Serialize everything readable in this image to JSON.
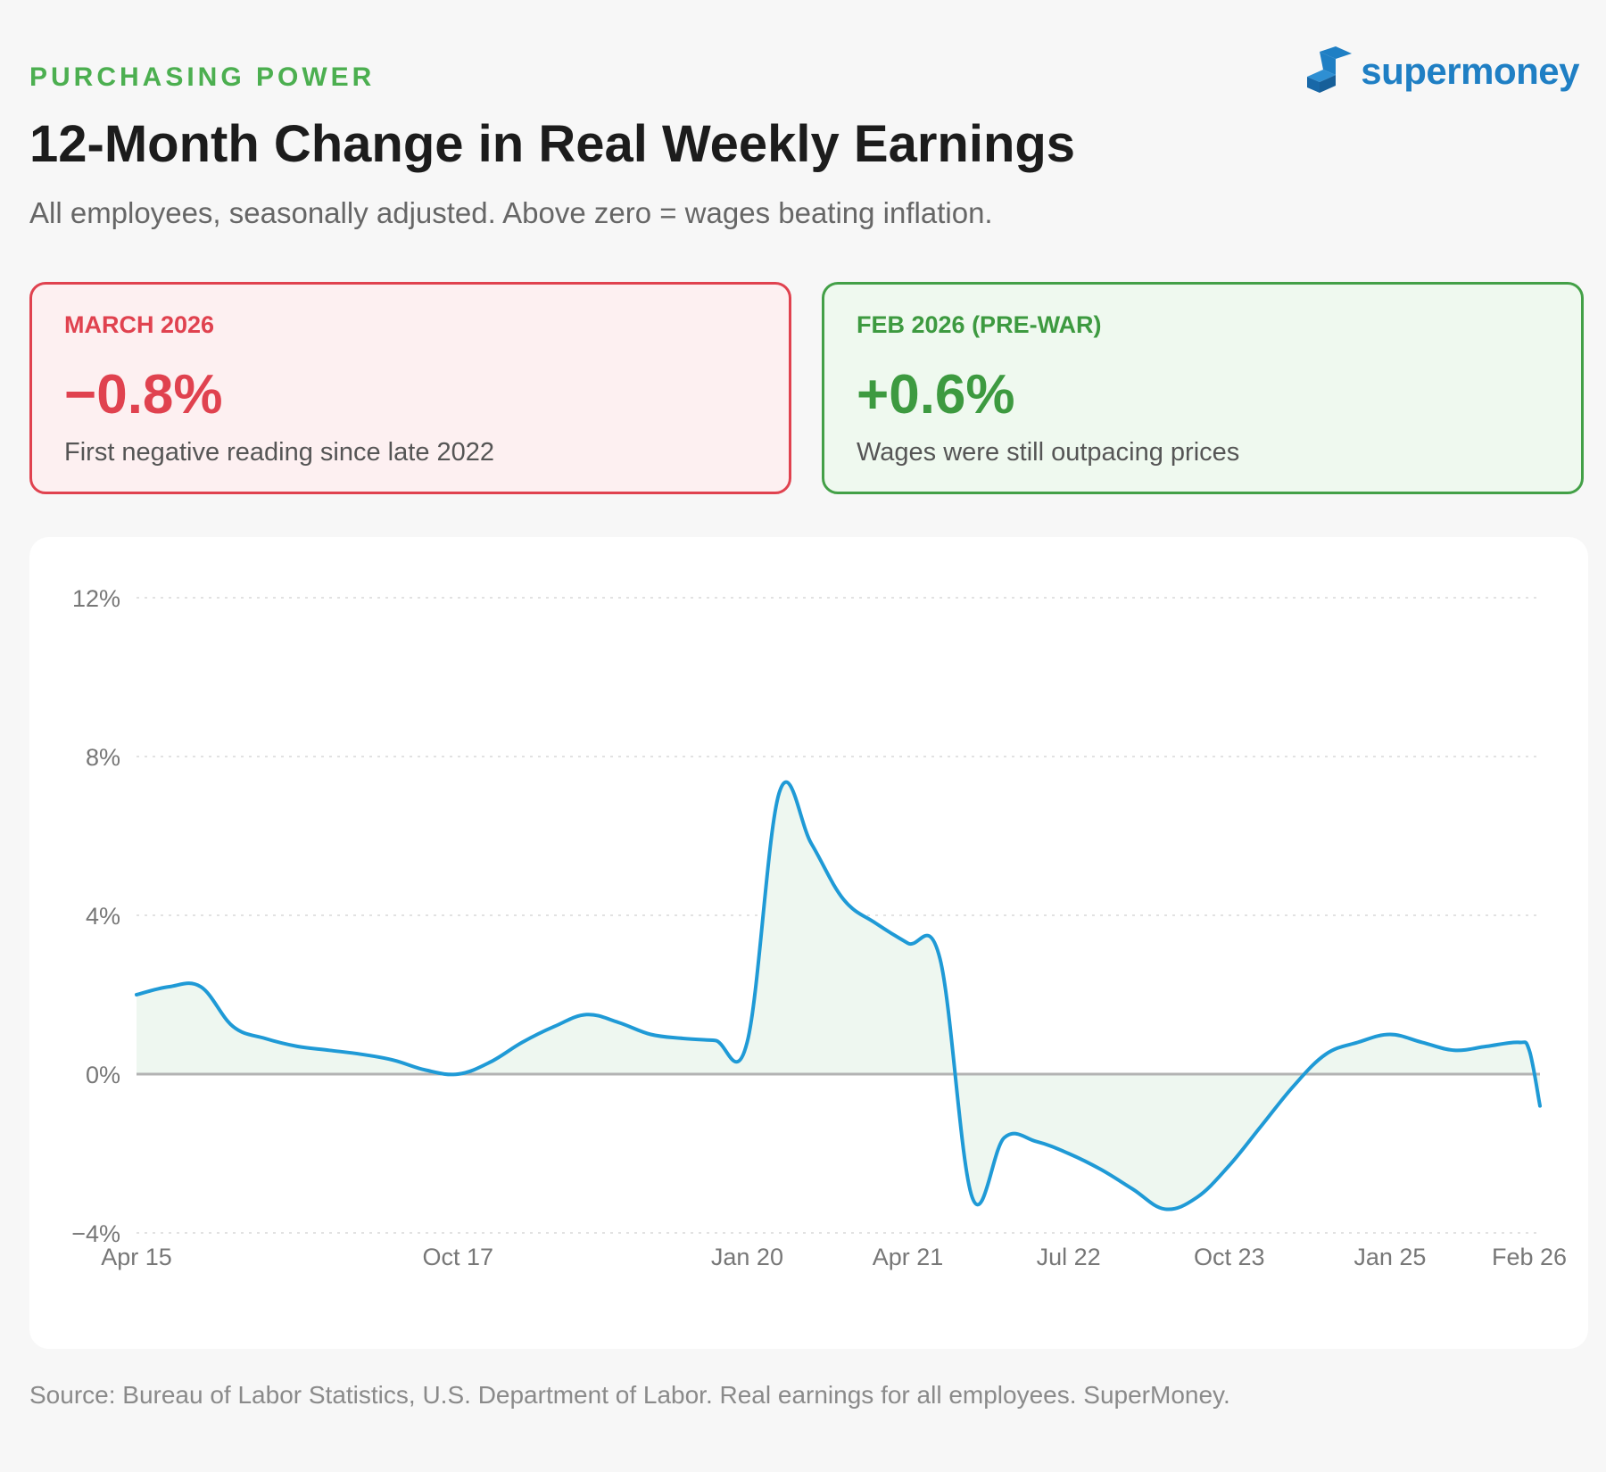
{
  "header": {
    "eyebrow": "PURCHASING POWER",
    "title": "12-Month Change in Real Weekly Earnings",
    "subtitle": "All employees, seasonally adjusted. Above zero = wages beating inflation.",
    "logo_text": "supermoney",
    "logo_icon": "supermoney-logo-icon"
  },
  "cards": {
    "negative": {
      "label": "MARCH 2026",
      "value": "−0.8%",
      "note": "First negative reading since late 2022",
      "color": "#e0424f"
    },
    "positive": {
      "label": "FEB 2026 (PRE-WAR)",
      "value": "+0.6%",
      "note": "Wages were still outpacing prices",
      "color": "#43a047"
    }
  },
  "chart_data": {
    "type": "area",
    "title": "",
    "xlabel": "",
    "ylabel": "",
    "ylim": [
      -4,
      12
    ],
    "y_ticks": [
      12,
      8,
      4,
      0,
      -4
    ],
    "y_tick_labels": [
      "12%",
      "8%",
      "4%",
      "0%",
      "−4%"
    ],
    "xlim": [
      "2015-04",
      "2026-03"
    ],
    "x_ticks": [
      "2015-04",
      "2017-10",
      "2020-01",
      "2021-04",
      "2022-07",
      "2023-10",
      "2025-01",
      "2026-02"
    ],
    "x_tick_labels": [
      "Apr 15",
      "Oct 17",
      "Jan 20",
      "Apr 21",
      "Jul 22",
      "Oct 23",
      "Jan 25",
      "Feb 26"
    ],
    "grid": true,
    "zero_line": true,
    "line_color": "#1f9ad6",
    "fill_color": "#eef7f0",
    "series": [
      {
        "name": "",
        "points": [
          [
            "2015-04",
            2.0
          ],
          [
            "2015-07",
            2.2
          ],
          [
            "2015-10",
            2.2
          ],
          [
            "2016-01",
            1.2
          ],
          [
            "2016-04",
            0.9
          ],
          [
            "2016-07",
            0.7
          ],
          [
            "2016-10",
            0.6
          ],
          [
            "2017-01",
            0.5
          ],
          [
            "2017-04",
            0.35
          ],
          [
            "2017-07",
            0.1
          ],
          [
            "2017-10",
            0.0
          ],
          [
            "2018-01",
            0.3
          ],
          [
            "2018-04",
            0.8
          ],
          [
            "2018-07",
            1.2
          ],
          [
            "2018-10",
            1.5
          ],
          [
            "2019-01",
            1.3
          ],
          [
            "2019-04",
            1.0
          ],
          [
            "2019-07",
            0.9
          ],
          [
            "2019-10",
            0.85
          ],
          [
            "2020-01",
            0.8
          ],
          [
            "2020-04",
            7.1
          ],
          [
            "2020-07",
            5.8
          ],
          [
            "2020-10",
            4.4
          ],
          [
            "2021-01",
            3.8
          ],
          [
            "2021-04",
            3.3
          ],
          [
            "2021-07",
            2.9
          ],
          [
            "2021-10",
            -3.1
          ],
          [
            "2022-01",
            -1.6
          ],
          [
            "2022-04",
            -1.7
          ],
          [
            "2022-07",
            -2.0
          ],
          [
            "2022-10",
            -2.4
          ],
          [
            "2023-01",
            -2.9
          ],
          [
            "2023-04",
            -3.4
          ],
          [
            "2023-07",
            -3.1
          ],
          [
            "2023-10",
            -2.3
          ],
          [
            "2024-01",
            -1.3
          ],
          [
            "2024-04",
            -0.3
          ],
          [
            "2024-07",
            0.5
          ],
          [
            "2024-10",
            0.8
          ],
          [
            "2025-01",
            1.0
          ],
          [
            "2025-04",
            0.8
          ],
          [
            "2025-07",
            0.6
          ],
          [
            "2025-10",
            0.7
          ],
          [
            "2026-01",
            0.8
          ],
          [
            "2026-02",
            0.6
          ],
          [
            "2026-03",
            -0.8
          ]
        ]
      }
    ]
  },
  "source": "Source: Bureau of Labor Statistics, U.S. Department of Labor. Real earnings for all employees. SuperMoney."
}
